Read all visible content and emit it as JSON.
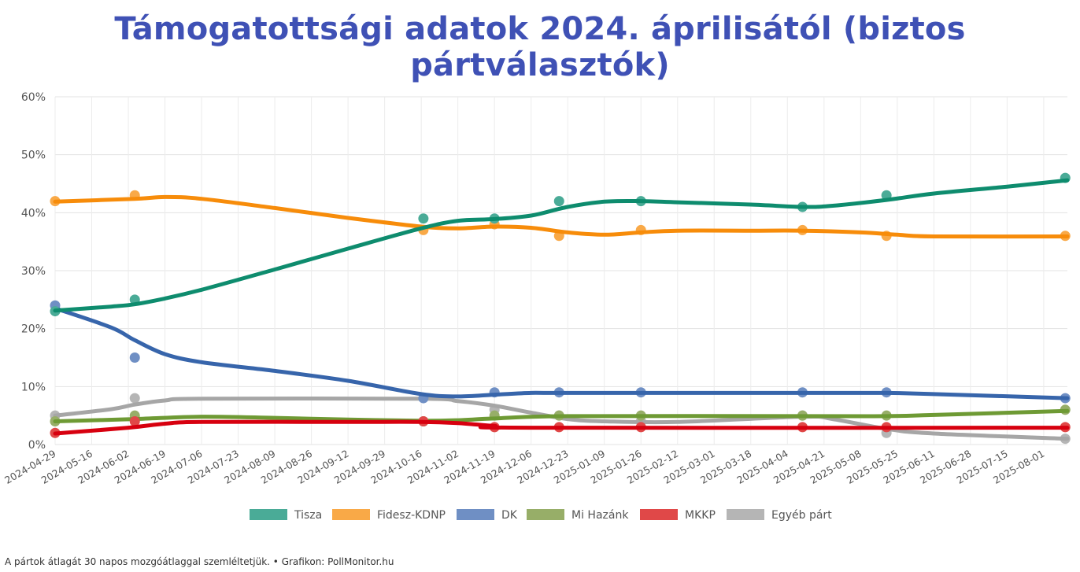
{
  "title": "Támogatottsági adatok 2024. áprilisától (biztos pártválasztók)",
  "footer": "A pártok átlagát 30 napos mozgóátlaggal szemléltetjük. • Grafikon: PollMonitor.hu",
  "chart_data": {
    "type": "line",
    "title": "Támogatottsági adatok 2024. áprilisától (biztos pártválasztók)",
    "xlabel": "",
    "ylabel": "",
    "ylim": [
      0,
      60
    ],
    "y_ticks": [
      "0%",
      "10%",
      "20%",
      "30%",
      "40%",
      "50%",
      "60%"
    ],
    "x_range": [
      "2024-04-29",
      "2025-08-12"
    ],
    "x_ticks": [
      "2024-04-29",
      "2024-05-16",
      "2024-06-02",
      "2024-06-19",
      "2024-07-06",
      "2024-07-23",
      "2024-08-09",
      "2024-08-26",
      "2024-09-12",
      "2024-09-29",
      "2024-10-16",
      "2024-11-02",
      "2024-11-19",
      "2024-12-06",
      "2024-12-23",
      "2025-01-09",
      "2025-01-26",
      "2025-02-12",
      "2025-03-01",
      "2025-03-18",
      "2025-04-04",
      "2025-04-21",
      "2025-05-08",
      "2025-05-25",
      "2025-06-11",
      "2025-06-28",
      "2025-07-15",
      "2025-08-01"
    ],
    "grid": true,
    "legend_position": "bottom",
    "series": [
      {
        "name": "Tisza",
        "line_color": "#0e8c6e",
        "point_color": "#4aab97",
        "points": [
          [
            "2024-04-29",
            23
          ],
          [
            "2024-06-05",
            25
          ],
          [
            "2024-10-17",
            39
          ],
          [
            "2024-11-19",
            39
          ],
          [
            "2024-12-19",
            42
          ],
          [
            "2025-01-26",
            42
          ],
          [
            "2025-04-11",
            41
          ],
          [
            "2025-05-20",
            43
          ],
          [
            "2025-08-11",
            46
          ]
        ],
        "trend": [
          [
            "2024-04-29",
            23.1
          ],
          [
            "2024-05-25",
            23.8
          ],
          [
            "2024-06-05",
            24.2
          ],
          [
            "2024-06-19",
            25.2
          ],
          [
            "2024-07-06",
            26.7
          ],
          [
            "2024-08-09",
            30.2
          ],
          [
            "2024-09-12",
            33.8
          ],
          [
            "2024-10-16",
            37.3
          ],
          [
            "2024-11-02",
            38.6
          ],
          [
            "2024-11-19",
            38.9
          ],
          [
            "2024-12-06",
            39.5
          ],
          [
            "2024-12-23",
            41.0
          ],
          [
            "2025-01-09",
            41.9
          ],
          [
            "2025-01-26",
            42.0
          ],
          [
            "2025-02-12",
            41.8
          ],
          [
            "2025-03-18",
            41.4
          ],
          [
            "2025-04-11",
            41.0
          ],
          [
            "2025-04-25",
            41.2
          ],
          [
            "2025-05-20",
            42.2
          ],
          [
            "2025-06-11",
            43.3
          ],
          [
            "2025-07-15",
            44.5
          ],
          [
            "2025-08-12",
            45.6
          ]
        ]
      },
      {
        "name": "Fidesz-KDNP",
        "line_color": "#f78c0a",
        "point_color": "#f9a947",
        "points": [
          [
            "2024-04-29",
            42
          ],
          [
            "2024-06-05",
            43
          ],
          [
            "2024-10-17",
            37
          ],
          [
            "2024-11-19",
            38
          ],
          [
            "2024-12-19",
            36
          ],
          [
            "2025-01-26",
            37
          ],
          [
            "2025-04-11",
            37
          ],
          [
            "2025-05-20",
            36
          ],
          [
            "2025-08-11",
            36
          ]
        ],
        "trend": [
          [
            "2024-04-29",
            41.9
          ],
          [
            "2024-06-05",
            42.4
          ],
          [
            "2024-06-19",
            42.7
          ],
          [
            "2024-07-06",
            42.4
          ],
          [
            "2024-08-09",
            40.8
          ],
          [
            "2024-09-12",
            39.1
          ],
          [
            "2024-10-16",
            37.6
          ],
          [
            "2024-11-02",
            37.3
          ],
          [
            "2024-11-19",
            37.6
          ],
          [
            "2024-12-06",
            37.4
          ],
          [
            "2024-12-23",
            36.6
          ],
          [
            "2025-01-09",
            36.2
          ],
          [
            "2025-01-26",
            36.6
          ],
          [
            "2025-02-12",
            36.9
          ],
          [
            "2025-03-18",
            36.9
          ],
          [
            "2025-04-11",
            36.9
          ],
          [
            "2025-05-08",
            36.6
          ],
          [
            "2025-05-25",
            36.2
          ],
          [
            "2025-06-11",
            35.9
          ],
          [
            "2025-08-12",
            35.9
          ]
        ]
      },
      {
        "name": "DK",
        "line_color": "#3765ab",
        "point_color": "#6f8fc4",
        "points": [
          [
            "2024-04-29",
            24
          ],
          [
            "2024-06-05",
            15
          ],
          [
            "2024-10-17",
            8
          ],
          [
            "2024-11-19",
            9
          ],
          [
            "2024-12-19",
            9
          ],
          [
            "2025-01-26",
            9
          ],
          [
            "2025-04-11",
            9
          ],
          [
            "2025-05-20",
            9
          ],
          [
            "2025-08-11",
            8
          ]
        ],
        "trend": [
          [
            "2024-04-29",
            23.5
          ],
          [
            "2024-05-25",
            20.2
          ],
          [
            "2024-06-05",
            18.0
          ],
          [
            "2024-06-19",
            15.6
          ],
          [
            "2024-07-06",
            14.2
          ],
          [
            "2024-08-09",
            12.7
          ],
          [
            "2024-09-12",
            11.0
          ],
          [
            "2024-10-16",
            8.7
          ],
          [
            "2024-11-02",
            8.3
          ],
          [
            "2024-11-19",
            8.6
          ],
          [
            "2024-12-06",
            8.9
          ],
          [
            "2024-12-23",
            8.9
          ],
          [
            "2025-04-11",
            8.9
          ],
          [
            "2025-05-20",
            8.9
          ],
          [
            "2025-06-11",
            8.7
          ],
          [
            "2025-08-12",
            8.0
          ]
        ]
      },
      {
        "name": "Mi Hazánk",
        "line_color": "#6e9a34",
        "point_color": "#97ae68",
        "points": [
          [
            "2024-04-29",
            4
          ],
          [
            "2024-06-05",
            5
          ],
          [
            "2024-10-17",
            4
          ],
          [
            "2024-11-19",
            5
          ],
          [
            "2024-12-19",
            5
          ],
          [
            "2025-01-26",
            5
          ],
          [
            "2025-04-11",
            5
          ],
          [
            "2025-05-20",
            5
          ],
          [
            "2025-08-11",
            6
          ]
        ],
        "trend": [
          [
            "2024-04-29",
            4.0
          ],
          [
            "2024-06-05",
            4.4
          ],
          [
            "2024-07-06",
            4.8
          ],
          [
            "2024-08-09",
            4.6
          ],
          [
            "2024-09-12",
            4.3
          ],
          [
            "2024-10-16",
            4.1
          ],
          [
            "2024-11-02",
            4.2
          ],
          [
            "2024-11-19",
            4.5
          ],
          [
            "2024-12-23",
            4.9
          ],
          [
            "2025-04-11",
            4.9
          ],
          [
            "2025-05-20",
            4.9
          ],
          [
            "2025-06-11",
            5.1
          ],
          [
            "2025-08-12",
            5.8
          ]
        ]
      },
      {
        "name": "MKKP",
        "line_color": "#d7000f",
        "point_color": "#e04848",
        "points": [
          [
            "2024-04-29",
            2
          ],
          [
            "2024-06-05",
            4
          ],
          [
            "2024-10-17",
            4
          ],
          [
            "2024-11-19",
            3
          ],
          [
            "2024-12-19",
            3
          ],
          [
            "2025-01-26",
            3
          ],
          [
            "2025-04-11",
            3
          ],
          [
            "2025-05-20",
            3
          ],
          [
            "2025-08-11",
            3
          ]
        ],
        "trend": [
          [
            "2024-04-29",
            1.9
          ],
          [
            "2024-06-02",
            2.9
          ],
          [
            "2024-06-19",
            3.6
          ],
          [
            "2024-07-06",
            3.9
          ],
          [
            "2024-09-12",
            3.9
          ],
          [
            "2024-10-16",
            3.9
          ],
          [
            "2024-11-02",
            3.7
          ],
          [
            "2024-11-19",
            3.2
          ],
          [
            "2024-12-06",
            2.9
          ],
          [
            "2025-08-12",
            2.9
          ]
        ]
      },
      {
        "name": "Egyéb párt",
        "line_color": "#a6a6a6",
        "point_color": "#b5b5b5",
        "points": [
          [
            "2024-04-29",
            5
          ],
          [
            "2024-06-05",
            8
          ],
          [
            "2024-10-17",
            4
          ],
          [
            "2024-11-19",
            6
          ],
          [
            "2024-12-19",
            5
          ],
          [
            "2025-01-26",
            4
          ],
          [
            "2025-04-11",
            5
          ],
          [
            "2025-05-20",
            2
          ],
          [
            "2025-08-11",
            1
          ]
        ],
        "trend": [
          [
            "2024-04-29",
            5.0
          ],
          [
            "2024-05-25",
            6.1
          ],
          [
            "2024-06-05",
            6.9
          ],
          [
            "2024-06-19",
            7.6
          ],
          [
            "2024-07-06",
            7.9
          ],
          [
            "2024-10-16",
            7.9
          ],
          [
            "2024-11-02",
            7.5
          ],
          [
            "2024-11-19",
            6.7
          ],
          [
            "2024-12-06",
            5.5
          ],
          [
            "2024-12-23",
            4.4
          ],
          [
            "2025-01-09",
            4.0
          ],
          [
            "2025-02-12",
            3.9
          ],
          [
            "2025-04-11",
            4.8
          ],
          [
            "2025-04-25",
            4.4
          ],
          [
            "2025-05-20",
            2.7
          ],
          [
            "2025-06-11",
            1.9
          ],
          [
            "2025-08-12",
            1.0
          ]
        ]
      }
    ]
  }
}
